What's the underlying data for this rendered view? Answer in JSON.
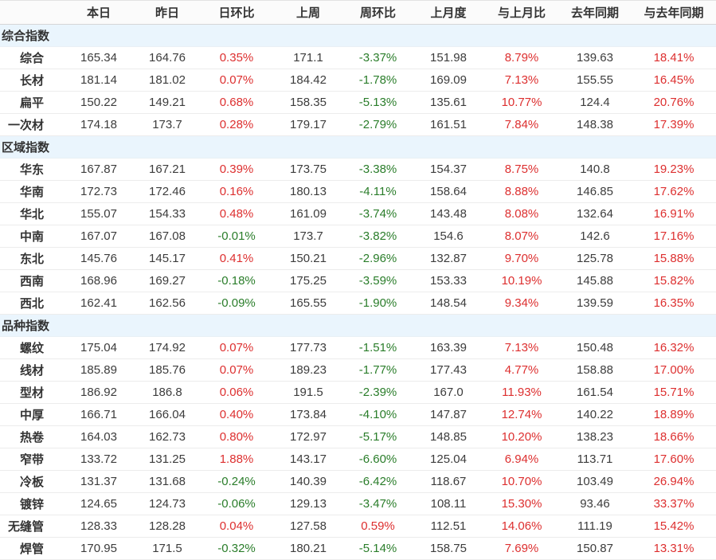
{
  "colors": {
    "positive_pct": "#dd2f2f",
    "negative_pct": "#2a7d2a",
    "section_bg": "#eaf5fd",
    "header_bg": "#fbfbfb",
    "text": "#3c3c3c"
  },
  "chart_data": {
    "type": "table",
    "columns": [
      "",
      "本日",
      "昨日",
      "日环比",
      "上周",
      "周环比",
      "上月度",
      "与上月比",
      "去年同期",
      "与去年同期"
    ],
    "sections": [
      {
        "title": "综合指数",
        "rows": [
          {
            "label": "综合",
            "values": [
              "165.34",
              "164.76",
              "0.35%",
              "171.1",
              "-3.37%",
              "151.98",
              "8.79%",
              "139.63",
              "18.41%"
            ]
          },
          {
            "label": "长材",
            "values": [
              "181.14",
              "181.02",
              "0.07%",
              "184.42",
              "-1.78%",
              "169.09",
              "7.13%",
              "155.55",
              "16.45%"
            ]
          },
          {
            "label": "扁平",
            "values": [
              "150.22",
              "149.21",
              "0.68%",
              "158.35",
              "-5.13%",
              "135.61",
              "10.77%",
              "124.4",
              "20.76%"
            ]
          },
          {
            "label": "一次材",
            "values": [
              "174.18",
              "173.7",
              "0.28%",
              "179.17",
              "-2.79%",
              "161.51",
              "7.84%",
              "148.38",
              "17.39%"
            ]
          }
        ]
      },
      {
        "title": "区域指数",
        "rows": [
          {
            "label": "华东",
            "values": [
              "167.87",
              "167.21",
              "0.39%",
              "173.75",
              "-3.38%",
              "154.37",
              "8.75%",
              "140.8",
              "19.23%"
            ]
          },
          {
            "label": "华南",
            "values": [
              "172.73",
              "172.46",
              "0.16%",
              "180.13",
              "-4.11%",
              "158.64",
              "8.88%",
              "146.85",
              "17.62%"
            ]
          },
          {
            "label": "华北",
            "values": [
              "155.07",
              "154.33",
              "0.48%",
              "161.09",
              "-3.74%",
              "143.48",
              "8.08%",
              "132.64",
              "16.91%"
            ]
          },
          {
            "label": "中南",
            "values": [
              "167.07",
              "167.08",
              "-0.01%",
              "173.7",
              "-3.82%",
              "154.6",
              "8.07%",
              "142.6",
              "17.16%"
            ]
          },
          {
            "label": "东北",
            "values": [
              "145.76",
              "145.17",
              "0.41%",
              "150.21",
              "-2.96%",
              "132.87",
              "9.70%",
              "125.78",
              "15.88%"
            ]
          },
          {
            "label": "西南",
            "values": [
              "168.96",
              "169.27",
              "-0.18%",
              "175.25",
              "-3.59%",
              "153.33",
              "10.19%",
              "145.88",
              "15.82%"
            ]
          },
          {
            "label": "西北",
            "values": [
              "162.41",
              "162.56",
              "-0.09%",
              "165.55",
              "-1.90%",
              "148.54",
              "9.34%",
              "139.59",
              "16.35%"
            ]
          }
        ]
      },
      {
        "title": "品种指数",
        "rows": [
          {
            "label": "螺纹",
            "values": [
              "175.04",
              "174.92",
              "0.07%",
              "177.73",
              "-1.51%",
              "163.39",
              "7.13%",
              "150.48",
              "16.32%"
            ]
          },
          {
            "label": "线材",
            "values": [
              "185.89",
              "185.76",
              "0.07%",
              "189.23",
              "-1.77%",
              "177.43",
              "4.77%",
              "158.88",
              "17.00%"
            ]
          },
          {
            "label": "型材",
            "values": [
              "186.92",
              "186.8",
              "0.06%",
              "191.5",
              "-2.39%",
              "167.0",
              "11.93%",
              "161.54",
              "15.71%"
            ]
          },
          {
            "label": "中厚",
            "values": [
              "166.71",
              "166.04",
              "0.40%",
              "173.84",
              "-4.10%",
              "147.87",
              "12.74%",
              "140.22",
              "18.89%"
            ]
          },
          {
            "label": "热卷",
            "values": [
              "164.03",
              "162.73",
              "0.80%",
              "172.97",
              "-5.17%",
              "148.85",
              "10.20%",
              "138.23",
              "18.66%"
            ]
          },
          {
            "label": "窄带",
            "values": [
              "133.72",
              "131.25",
              "1.88%",
              "143.17",
              "-6.60%",
              "125.04",
              "6.94%",
              "113.71",
              "17.60%"
            ]
          },
          {
            "label": "冷板",
            "values": [
              "131.37",
              "131.68",
              "-0.24%",
              "140.39",
              "-6.42%",
              "118.67",
              "10.70%",
              "103.49",
              "26.94%"
            ]
          },
          {
            "label": "镀锌",
            "values": [
              "124.65",
              "124.73",
              "-0.06%",
              "129.13",
              "-3.47%",
              "108.11",
              "15.30%",
              "93.46",
              "33.37%"
            ]
          },
          {
            "label": "无缝管",
            "values": [
              "128.33",
              "128.28",
              "0.04%",
              "127.58",
              "0.59%",
              "112.51",
              "14.06%",
              "111.19",
              "15.42%"
            ]
          },
          {
            "label": "焊管",
            "values": [
              "170.95",
              "171.5",
              "-0.32%",
              "180.21",
              "-5.14%",
              "158.75",
              "7.69%",
              "150.87",
              "13.31%"
            ]
          }
        ]
      }
    ]
  }
}
